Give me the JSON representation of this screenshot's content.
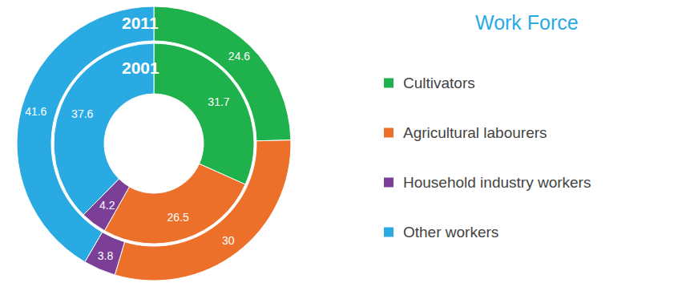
{
  "chart_data": {
    "type": "pie",
    "title": "Work Force",
    "categories": [
      "Cultivators",
      "Agricultural labourers",
      "Household industry workers",
      "Other workers"
    ],
    "colors": [
      "#1fb14b",
      "#ec6f2a",
      "#7b3f97",
      "#2aaae2"
    ],
    "series": [
      {
        "name": "2011",
        "values": [
          24.6,
          30,
          3.8,
          41.6
        ]
      },
      {
        "name": "2001",
        "values": [
          31.7,
          26.5,
          4.2,
          37.6
        ]
      }
    ],
    "data_labels": true,
    "legend": "right"
  }
}
